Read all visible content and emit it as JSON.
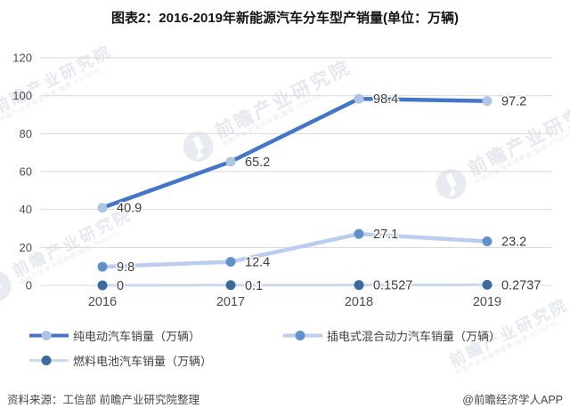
{
  "title": "图表2：2016-2019年新能源汽车分车型产销量(单位：万辆)",
  "chart_data": {
    "type": "line",
    "categories": [
      "2016",
      "2017",
      "2018",
      "2019"
    ],
    "series": [
      {
        "name": "纯电动汽车销量（万辆）",
        "values": [
          40.9,
          65.2,
          98.4,
          97.2
        ],
        "labels": [
          "40.9",
          "65.2",
          "98.4",
          "97.2"
        ],
        "line_color": "#4375C8",
        "marker_color": "#AFC3E4",
        "line_width": 4.5
      },
      {
        "name": "插电式混合动力汽车销量（万辆）",
        "values": [
          9.8,
          12.4,
          27.1,
          23.2
        ],
        "labels": [
          "9.8",
          "12.4",
          "27.1",
          "23.2"
        ],
        "line_color": "#BBCDEE",
        "marker_color": "#6190CC",
        "line_width": 4.5
      },
      {
        "name": "燃料电池汽车销量（万辆）",
        "values": [
          0,
          0.1,
          0.1527,
          0.2737
        ],
        "labels": [
          "0",
          "0.1",
          "0.1527",
          "0.2737"
        ],
        "line_color": "#CBD8F2",
        "marker_color": "#3A6B9E",
        "line_width": 3
      }
    ],
    "ylim": [
      0,
      120
    ],
    "yticks": [
      0,
      20,
      40,
      60,
      80,
      100,
      120
    ],
    "grid": "horizontal",
    "legend_position": "bottom",
    "gridline_color": "#D9D9D9",
    "axis_text_color": "#4d4d4d",
    "data_label_color": "#3c3c3c"
  },
  "legend": {
    "items": [
      {
        "label": "纯电动汽车销量（万辆）"
      },
      {
        "label": "插电式混合动力汽车销量（万辆）"
      },
      {
        "label": "燃料电池汽车销量（万辆）"
      }
    ]
  },
  "watermark": {
    "text": "前瞻产业研究院",
    "subtext": "中国产业咨询领导者(股票:839599)"
  },
  "footer": {
    "source": "资料来源：工信部 前瞻产业研究院整理",
    "credit": "@前瞻经济学人APP"
  }
}
